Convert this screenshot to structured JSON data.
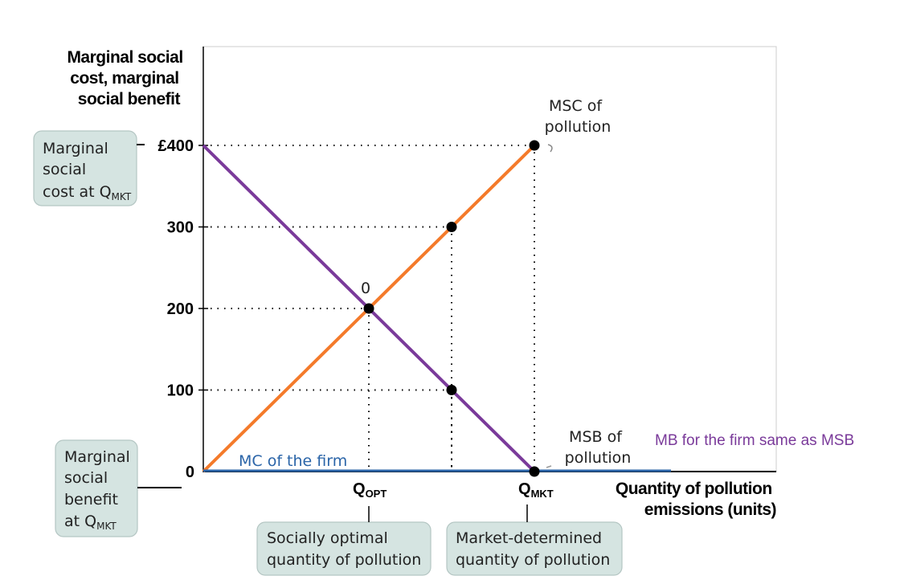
{
  "chart_data": {
    "type": "line",
    "ylabel": [
      "Marginal social",
      "cost, marginal",
      "social benefit"
    ],
    "xlabel": [
      "Quantity of pollution",
      "emissions (units)"
    ],
    "ylim": [
      0,
      400
    ],
    "y_ticks": [
      "£400",
      "300",
      "200",
      "100",
      "0"
    ],
    "x_ticks": [
      "Q_OPT",
      "Q_MKT"
    ],
    "x_tick_labels": [
      {
        "main": "Q",
        "sub": "OPT"
      },
      {
        "main": "Q",
        "sub": "MKT"
      }
    ],
    "series": [
      {
        "name": "MSC of pollution",
        "color": "#f47a2a",
        "points": [
          [
            "0",
            0
          ],
          [
            "Q_OPT",
            200
          ],
          [
            "between",
            300
          ],
          [
            "Q_MKT",
            400
          ]
        ]
      },
      {
        "name": "MSB of pollution",
        "color": "#7a3a9a",
        "points": [
          [
            "0",
            400
          ],
          [
            "Q_OPT",
            200
          ],
          [
            "between",
            100
          ],
          [
            "Q_MKT",
            0
          ]
        ]
      },
      {
        "name": "MC of the firm",
        "color": "#2a64a8",
        "points": [
          [
            "0",
            0
          ],
          [
            "beyond Q_MKT",
            0
          ]
        ]
      }
    ],
    "marked_points": [
      [
        "Q_OPT",
        200
      ],
      [
        "between",
        300
      ],
      [
        "between",
        100
      ],
      [
        "Q_MKT",
        400
      ],
      [
        "Q_MKT",
        0
      ]
    ],
    "grid": false
  },
  "labels": {
    "msc": [
      "MSC of",
      "pollution"
    ],
    "msb": [
      "MSB of",
      "pollution"
    ],
    "mc_firm": "MC of the firm",
    "intersection": "0",
    "mb_note": "MB for the firm same as MSB",
    "mb_note_color": "#7a3a9a",
    "box_msc": [
      "Marginal",
      "social",
      "cost at Q",
      "MKT"
    ],
    "box_msb": [
      "Marginal",
      "social",
      "benefit",
      "at Q",
      "MKT"
    ],
    "box_opt": [
      "Socially optimal",
      "quantity of pollution"
    ],
    "box_mkt": [
      "Market-determined",
      "quantity of pollution"
    ]
  }
}
